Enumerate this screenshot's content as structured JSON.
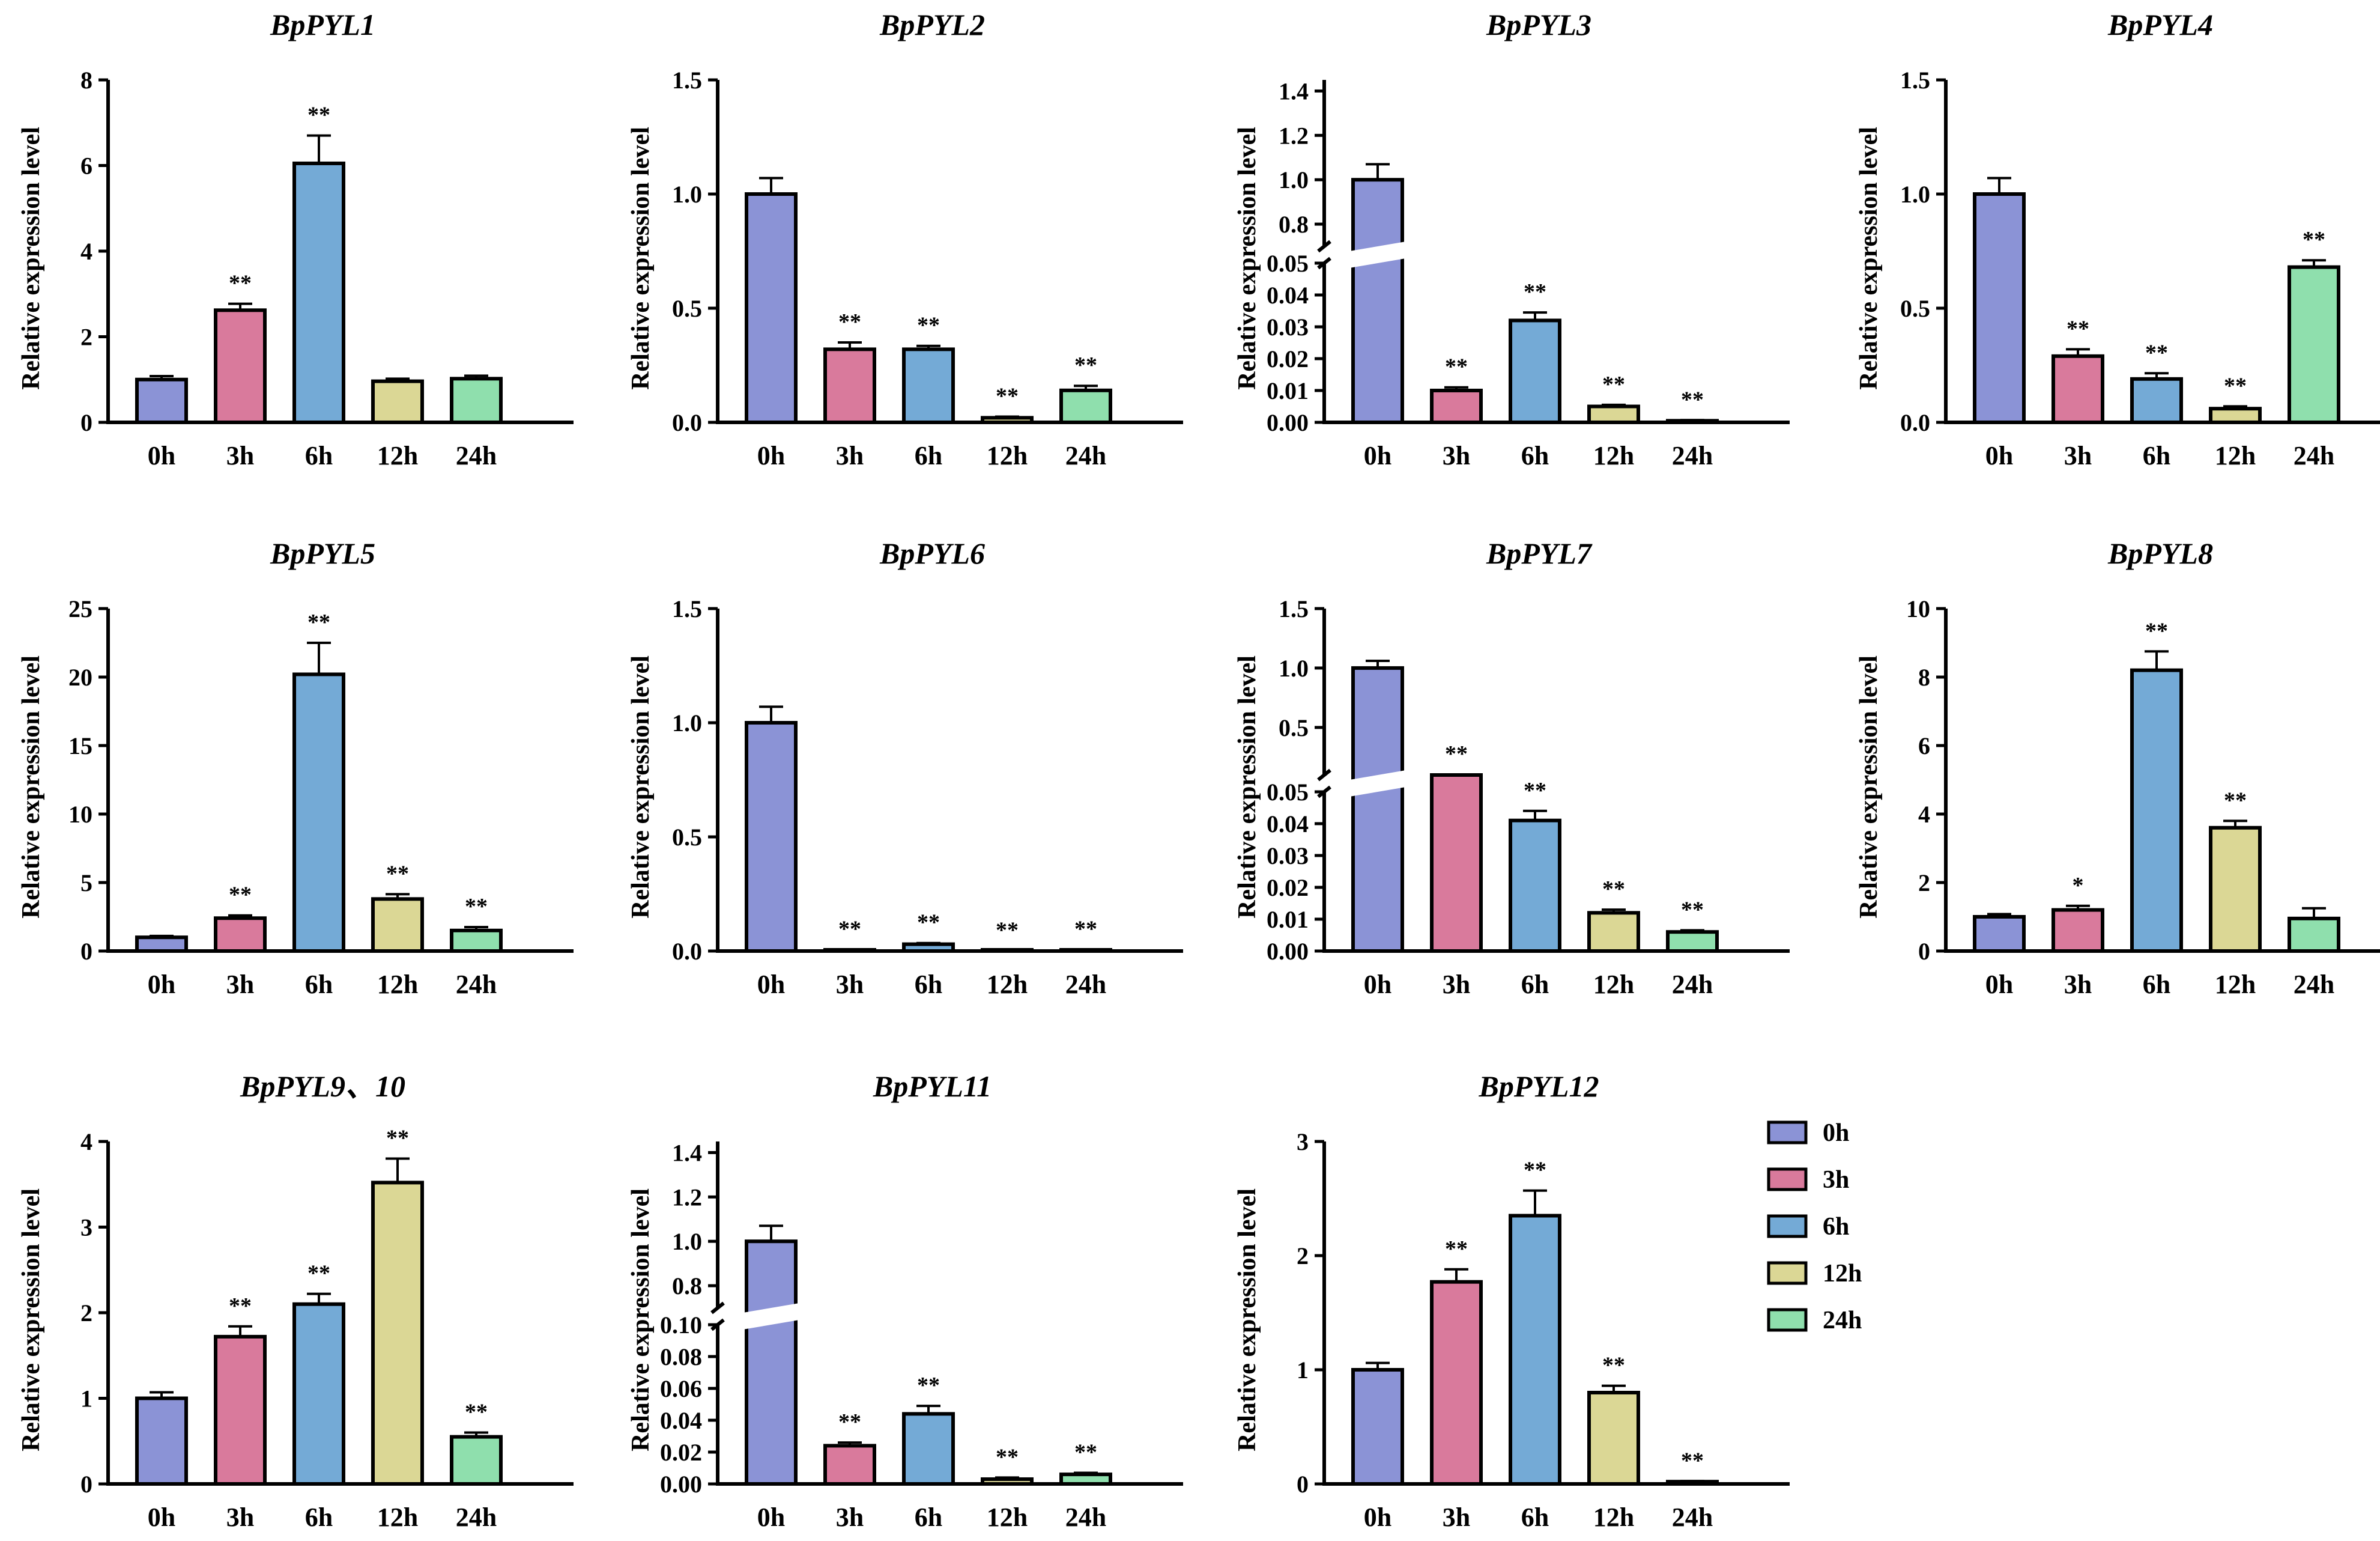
{
  "colors": {
    "0h": "#8b93d6",
    "3h": "#d97a9c",
    "6h": "#74aad6",
    "12h": "#dbd795",
    "24h": "#8fdfad"
  },
  "legend": {
    "entries": [
      "0h",
      "3h",
      "6h",
      "12h",
      "24h"
    ]
  },
  "chart_data": [
    {
      "type": "bar",
      "title": "BpPYL1",
      "ylabel": "Relative expression level",
      "categories": [
        "0h",
        "3h",
        "6h",
        "12h",
        "24h"
      ],
      "values": [
        1.0,
        2.62,
        6.05,
        0.96,
        1.02
      ],
      "errors": [
        0.08,
        0.15,
        0.65,
        0.06,
        0.07
      ],
      "significance": [
        "",
        "**",
        "**",
        "",
        ""
      ],
      "ylim": [
        0,
        8
      ],
      "yticks": [
        0,
        2,
        4,
        6,
        8
      ],
      "ytick_labels": [
        "0",
        "2",
        "4",
        "6",
        "8"
      ]
    },
    {
      "type": "bar",
      "title": "BpPYL2",
      "ylabel": "Relative expression level",
      "categories": [
        "0h",
        "3h",
        "6h",
        "12h",
        "24h"
      ],
      "values": [
        1.0,
        0.32,
        0.32,
        0.02,
        0.14
      ],
      "errors": [
        0.07,
        0.03,
        0.015,
        0.005,
        0.02
      ],
      "significance": [
        "",
        "**",
        "**",
        "**",
        "**"
      ],
      "ylim": [
        0,
        1.5
      ],
      "yticks": [
        0,
        0.5,
        1.0,
        1.5
      ],
      "ytick_labels": [
        "0.0",
        "0.5",
        "1.0",
        "1.5"
      ]
    },
    {
      "type": "bar",
      "title": "BpPYL3",
      "ylabel": "Relative expression level",
      "categories": [
        "0h",
        "3h",
        "6h",
        "12h",
        "24h"
      ],
      "values": [
        1.0,
        0.01,
        0.032,
        0.005,
        0.0005
      ],
      "errors": [
        0.07,
        0.001,
        0.0025,
        0.0005,
        0.0002
      ],
      "significance": [
        "",
        "**",
        "**",
        "**",
        "**"
      ],
      "axis_break": true,
      "ylim_lower": [
        0,
        0.05
      ],
      "ylim_upper": [
        0.7,
        1.45
      ],
      "yticks_lower": [
        0,
        0.01,
        0.02,
        0.03,
        0.04,
        0.05
      ],
      "ytick_labels_lower": [
        "0.00",
        "0.01",
        "0.02",
        "0.03",
        "0.04",
        "0.05"
      ],
      "yticks_upper": [
        0.8,
        1.0,
        1.2,
        1.4
      ],
      "ytick_labels_upper": [
        "0.8",
        "1.0",
        "1.2",
        "1.4"
      ]
    },
    {
      "type": "bar",
      "title": "BpPYL4",
      "ylabel": "Relative expression level",
      "categories": [
        "0h",
        "3h",
        "6h",
        "12h",
        "24h"
      ],
      "values": [
        1.0,
        0.29,
        0.19,
        0.06,
        0.68
      ],
      "errors": [
        0.07,
        0.03,
        0.025,
        0.01,
        0.03
      ],
      "significance": [
        "",
        "**",
        "**",
        "**",
        "**"
      ],
      "ylim": [
        0,
        1.5
      ],
      "yticks": [
        0,
        0.5,
        1.0,
        1.5
      ],
      "ytick_labels": [
        "0.0",
        "0.5",
        "1.0",
        "1.5"
      ]
    },
    {
      "type": "bar",
      "title": "BpPYL5",
      "ylabel": "Relative expression level",
      "categories": [
        "0h",
        "3h",
        "6h",
        "12h",
        "24h"
      ],
      "values": [
        1.0,
        2.4,
        20.2,
        3.8,
        1.5
      ],
      "errors": [
        0.1,
        0.2,
        2.3,
        0.35,
        0.25
      ],
      "significance": [
        "",
        "**",
        "**",
        "**",
        "**"
      ],
      "ylim": [
        0,
        25
      ],
      "yticks": [
        0,
        5,
        10,
        15,
        20,
        25
      ],
      "ytick_labels": [
        "0",
        "5",
        "10",
        "15",
        "20",
        "25"
      ]
    },
    {
      "type": "bar",
      "title": "BpPYL6",
      "ylabel": "Relative expression level",
      "categories": [
        "0h",
        "3h",
        "6h",
        "12h",
        "24h"
      ],
      "values": [
        1.0,
        0.005,
        0.03,
        0.001,
        0.005
      ],
      "errors": [
        0.07,
        0.001,
        0.005,
        0.0005,
        0.001
      ],
      "significance": [
        "",
        "**",
        "**",
        "**",
        "**"
      ],
      "ylim": [
        0,
        1.5
      ],
      "yticks": [
        0,
        0.5,
        1.0,
        1.5
      ],
      "ytick_labels": [
        "0.0",
        "0.5",
        "1.0",
        "1.5"
      ]
    },
    {
      "type": "bar",
      "title": "BpPYL7",
      "ylabel": "Relative expression level",
      "categories": [
        "0h",
        "3h",
        "6h",
        "12h",
        "24h"
      ],
      "values": [
        1.0,
        0.1,
        0.041,
        0.012,
        0.006
      ],
      "errors": [
        0.06,
        0.004,
        0.003,
        0.001,
        0.0005
      ],
      "significance": [
        "",
        "**",
        "**",
        "**",
        "**"
      ],
      "axis_break": true,
      "ylim_lower": [
        0,
        0.05
      ],
      "ylim_upper": [
        0.1,
        1.5
      ],
      "yticks_lower": [
        0,
        0.01,
        0.02,
        0.03,
        0.04,
        0.05
      ],
      "ytick_labels_lower": [
        "0.00",
        "0.01",
        "0.02",
        "0.03",
        "0.04",
        "0.05"
      ],
      "yticks_upper": [
        0.5,
        1.0,
        1.5
      ],
      "ytick_labels_upper": [
        "0.5",
        "1.0",
        "1.5"
      ]
    },
    {
      "type": "bar",
      "title": "BpPYL8",
      "ylabel": "Relative expression level",
      "categories": [
        "0h",
        "3h",
        "6h",
        "12h",
        "24h"
      ],
      "values": [
        1.0,
        1.2,
        8.2,
        3.6,
        0.95
      ],
      "errors": [
        0.08,
        0.12,
        0.55,
        0.2,
        0.3
      ],
      "significance": [
        "",
        "*",
        "**",
        "**",
        ""
      ],
      "ylim": [
        0,
        10
      ],
      "yticks": [
        0,
        2,
        4,
        6,
        8,
        10
      ],
      "ytick_labels": [
        "0",
        "2",
        "4",
        "6",
        "8",
        "10"
      ]
    },
    {
      "type": "bar",
      "title": "BpPYL9、10",
      "ylabel": "Relative expression level",
      "categories": [
        "0h",
        "3h",
        "6h",
        "12h",
        "24h"
      ],
      "values": [
        1.0,
        1.72,
        2.1,
        3.52,
        0.55
      ],
      "errors": [
        0.07,
        0.12,
        0.12,
        0.28,
        0.05
      ],
      "significance": [
        "",
        "**",
        "**",
        "**",
        "**"
      ],
      "ylim": [
        0,
        4
      ],
      "yticks": [
        0,
        1,
        2,
        3,
        4
      ],
      "ytick_labels": [
        "0",
        "1",
        "2",
        "3",
        "4"
      ]
    },
    {
      "type": "bar",
      "title": "BpPYL11",
      "ylabel": "Relative expression level",
      "categories": [
        "0h",
        "3h",
        "6h",
        "12h",
        "24h"
      ],
      "values": [
        1.0,
        0.024,
        0.044,
        0.003,
        0.006
      ],
      "errors": [
        0.07,
        0.002,
        0.005,
        0.001,
        0.001
      ],
      "significance": [
        "",
        "**",
        "**",
        "**",
        "**"
      ],
      "axis_break": true,
      "ylim_lower": [
        0,
        0.1
      ],
      "ylim_upper": [
        0.7,
        1.45
      ],
      "yticks_lower": [
        0,
        0.02,
        0.04,
        0.06,
        0.08,
        0.1
      ],
      "ytick_labels_lower": [
        "0.00",
        "0.02",
        "0.04",
        "0.06",
        "0.08",
        "0.10"
      ],
      "yticks_upper": [
        0.8,
        1.0,
        1.2,
        1.4
      ],
      "ytick_labels_upper": [
        "0.8",
        "1.0",
        "1.2",
        "1.4"
      ]
    },
    {
      "type": "bar",
      "title": "BpPYL12",
      "ylabel": "Relative expression level",
      "categories": [
        "0h",
        "3h",
        "6h",
        "12h",
        "24h"
      ],
      "values": [
        1.0,
        1.77,
        2.35,
        0.8,
        0.02
      ],
      "errors": [
        0.06,
        0.11,
        0.22,
        0.06,
        0.005
      ],
      "significance": [
        "",
        "**",
        "**",
        "**",
        "**"
      ],
      "ylim": [
        0,
        3
      ],
      "yticks": [
        0,
        1,
        2,
        3
      ],
      "ytick_labels": [
        "0",
        "1",
        "2",
        "3"
      ]
    }
  ]
}
